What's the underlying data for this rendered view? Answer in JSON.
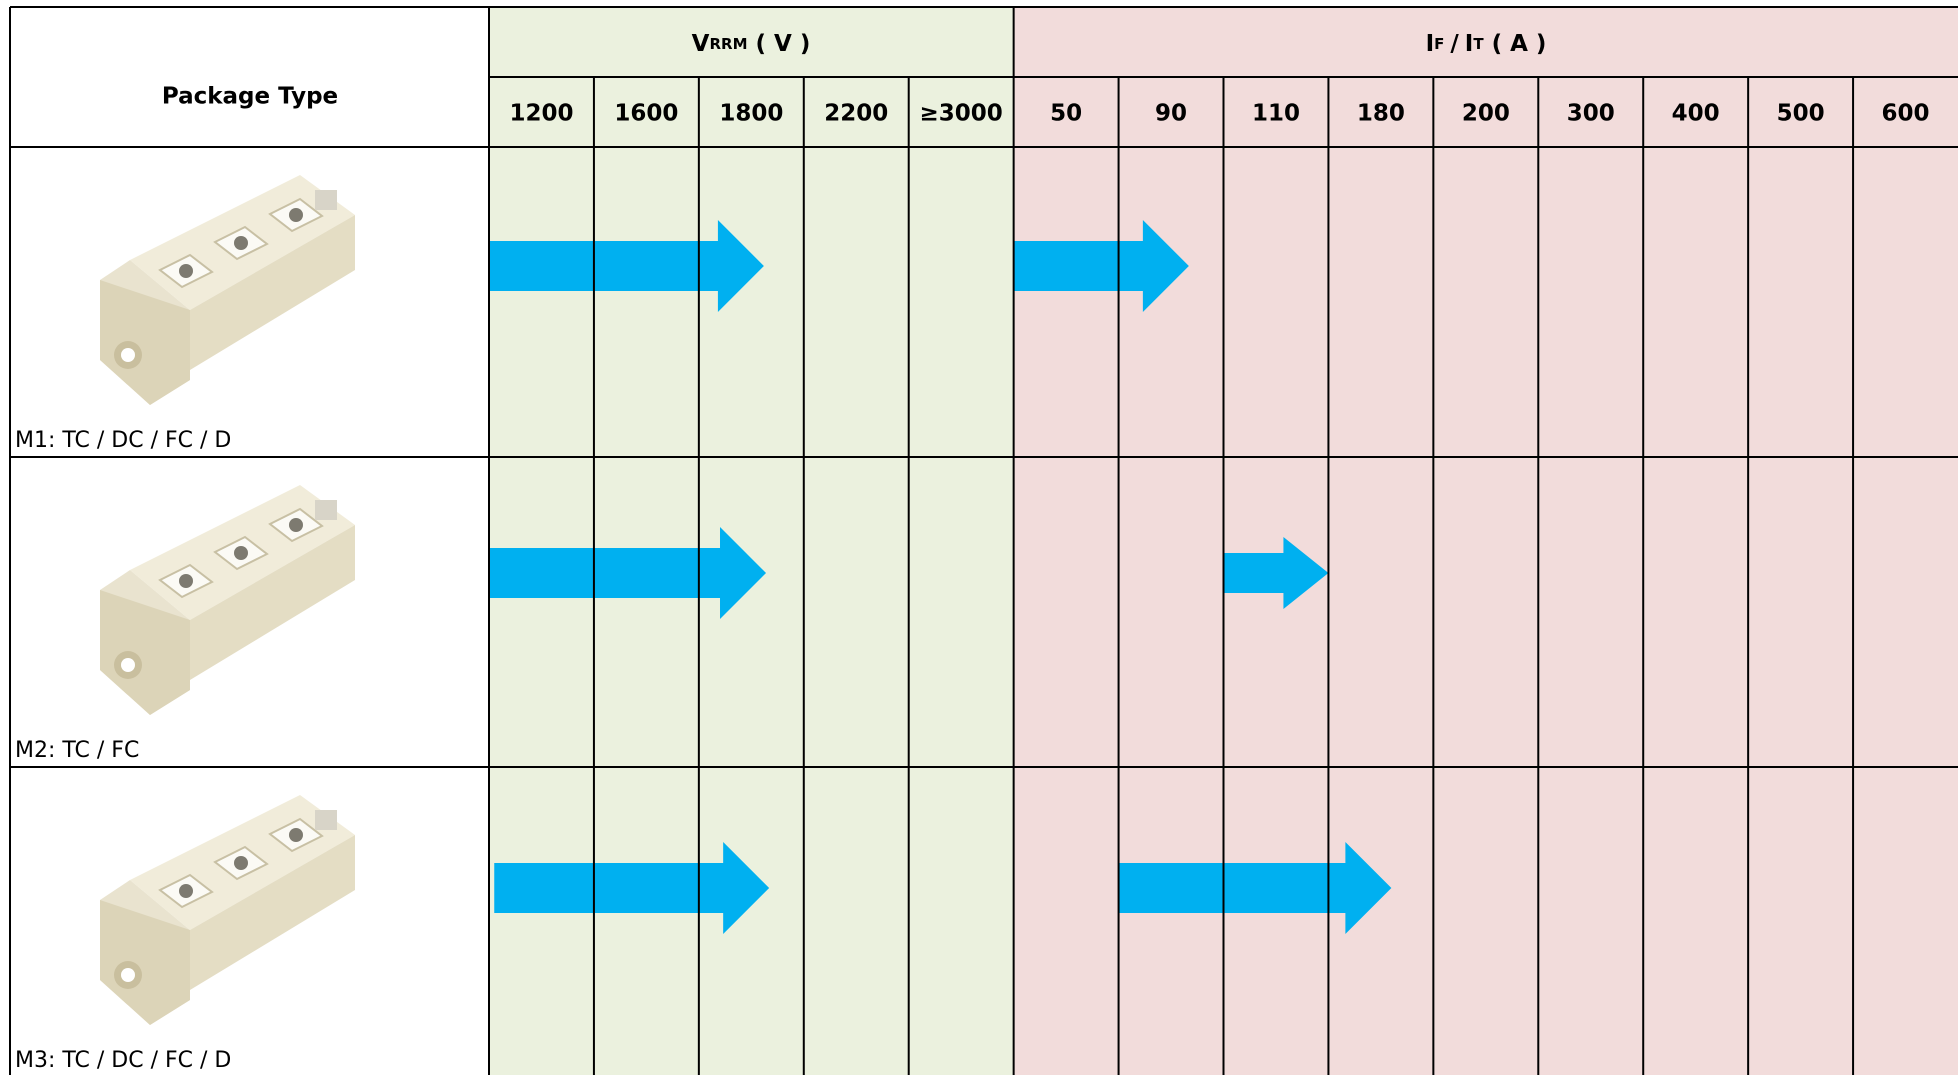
{
  "header": {
    "package_type": "Package Type",
    "vrrm": {
      "symbol": "V",
      "subscript": "RRM",
      "unit": "( V )"
    },
    "current": {
      "symbol1": "I",
      "sub1": "F",
      "sep": "/",
      "symbol2": "I",
      "sub2": "T",
      "unit": "( A )"
    }
  },
  "vrrm_columns": [
    "1200",
    "1600",
    "1800",
    "2200",
    "≥3000"
  ],
  "current_columns": [
    "50",
    "90",
    "110",
    "180",
    "200",
    "300",
    "400",
    "500",
    "600"
  ],
  "rows": [
    {
      "label": "M1: TC / DC / FC / D"
    },
    {
      "label": "M2: TC / FC"
    },
    {
      "label": "M3:  TC / DC / FC / D"
    }
  ]
}
